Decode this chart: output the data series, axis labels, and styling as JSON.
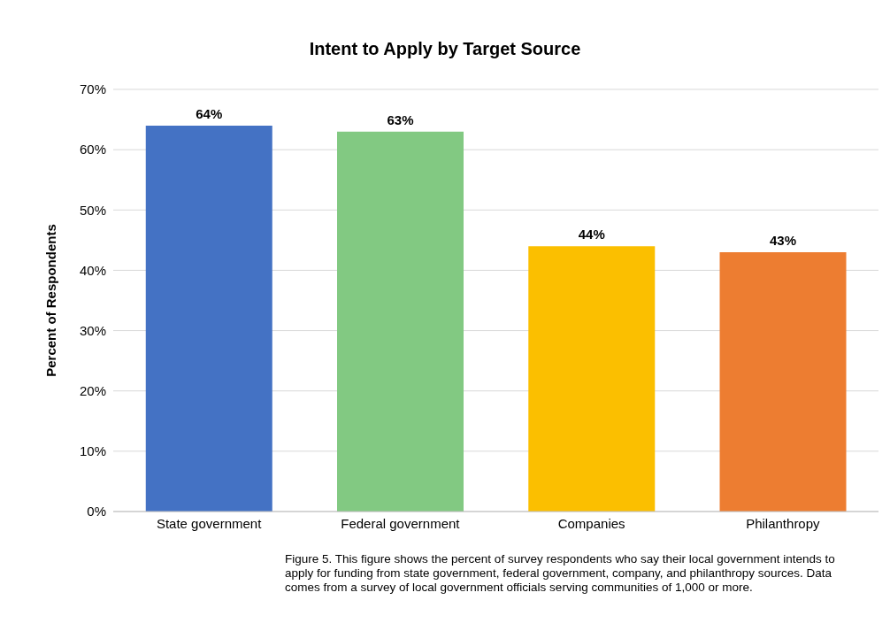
{
  "chart_data": {
    "type": "bar",
    "title": "Intent to Apply by Target Source",
    "ylabel": "Percent of Respondents",
    "categories": [
      "State government",
      "Federal government",
      "Companies",
      "Philanthropy"
    ],
    "values": [
      64,
      63,
      44,
      43
    ],
    "colors": [
      "#4472c4",
      "#82c982",
      "#fbbf00",
      "#ed7d31"
    ],
    "value_labels": [
      "64%",
      "63%",
      "44%",
      "43%"
    ],
    "ylim": [
      0,
      70
    ],
    "yticks": [
      {
        "value": 0,
        "label": "0%"
      },
      {
        "value": 10,
        "label": "10%"
      },
      {
        "value": 20,
        "label": "20%"
      },
      {
        "value": 30,
        "label": "30%"
      },
      {
        "value": 40,
        "label": "40%"
      },
      {
        "value": 50,
        "label": "50%"
      },
      {
        "value": 60,
        "label": "60%"
      },
      {
        "value": 70,
        "label": "70%"
      }
    ],
    "grid": "y",
    "annotations": [
      "Figure 5. This figure shows the percent of survey respondents who say their local government intends to apply for funding from state government, federal government, company, and philanthropy sources. Data comes from a survey of local government officials serving communities of 1,000 or more."
    ]
  }
}
